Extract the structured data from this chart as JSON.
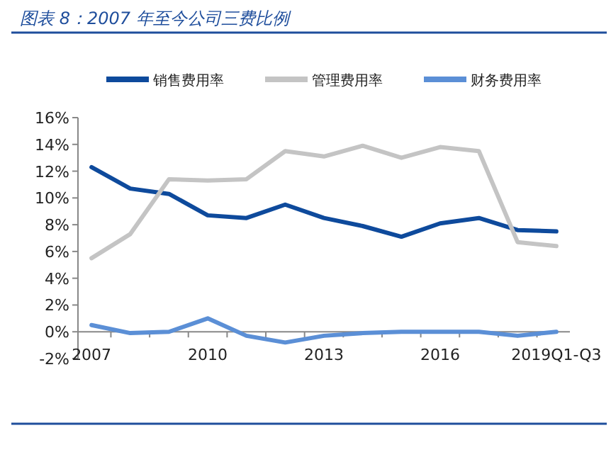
{
  "chart_data": {
    "type": "line",
    "title": "图表 8：2007 年至今公司三费比例",
    "categories": [
      "2007",
      null,
      null,
      "2010",
      null,
      null,
      "2013",
      null,
      null,
      "2016",
      null,
      null,
      "2019Q1-Q3"
    ],
    "series": [
      {
        "name": "销售费用率",
        "color": "#0e4a9c",
        "values": [
          12.3,
          10.7,
          10.3,
          8.7,
          8.5,
          9.5,
          8.5,
          7.9,
          7.1,
          8.1,
          8.5,
          7.6,
          7.5
        ]
      },
      {
        "name": "管理费用率",
        "color": "#c4c4c4",
        "values": [
          5.5,
          7.3,
          11.4,
          11.3,
          11.4,
          13.5,
          13.1,
          13.9,
          13.0,
          13.8,
          13.5,
          6.7,
          6.4
        ]
      },
      {
        "name": "财务费用率",
        "color": "#5b8fd6",
        "values": [
          0.5,
          -0.1,
          0.0,
          1.0,
          -0.3,
          -0.8,
          -0.3,
          -0.1,
          0.0,
          0.0,
          0.0,
          -0.3,
          0.0
        ]
      }
    ],
    "ylim": [
      -2,
      16
    ],
    "yticks": [
      {
        "value": -2,
        "label": "-2%"
      },
      {
        "value": 0,
        "label": "0%"
      },
      {
        "value": 2,
        "label": "2%"
      },
      {
        "value": 4,
        "label": "4%"
      },
      {
        "value": 6,
        "label": "6%"
      },
      {
        "value": 8,
        "label": "8%"
      },
      {
        "value": 10,
        "label": "10%"
      },
      {
        "value": 12,
        "label": "12%"
      },
      {
        "value": 14,
        "label": "14%"
      },
      {
        "value": 16,
        "label": "16%"
      }
    ],
    "grid": false,
    "legend": "top",
    "marker": "none",
    "line_style": "solid"
  }
}
